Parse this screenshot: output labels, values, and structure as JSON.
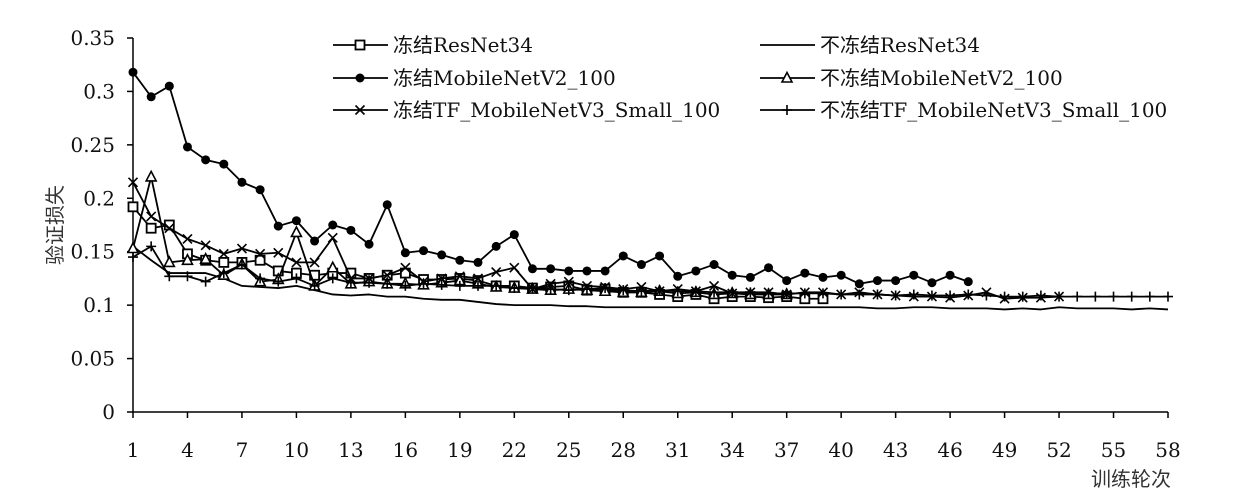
{
  "chart_data": {
    "type": "line",
    "xlabel": "训练轮次",
    "ylabel": "验证损失",
    "xlim": [
      1,
      58
    ],
    "ylim": [
      0,
      0.35
    ],
    "x_ticks": [
      "1",
      "4",
      "7",
      "10",
      "13",
      "16",
      "19",
      "22",
      "25",
      "28",
      "31",
      "34",
      "37",
      "40",
      "43",
      "46",
      "49",
      "52",
      "55",
      "58"
    ],
    "y_ticks": [
      "0",
      "0.05",
      "0.1",
      "0.15",
      "0.2",
      "0.25",
      "0.3",
      "0.35"
    ],
    "legend_position": "top",
    "grid": false,
    "series": [
      {
        "name": "冻结ResNet34",
        "marker": "square",
        "x_start": 1,
        "values": [
          0.192,
          0.172,
          0.175,
          0.148,
          0.142,
          0.14,
          0.14,
          0.142,
          0.132,
          0.13,
          0.128,
          0.13,
          0.13,
          0.125,
          0.128,
          0.13,
          0.124,
          0.124,
          0.125,
          0.123,
          0.118,
          0.118,
          0.116,
          0.117,
          0.118,
          0.114,
          0.115,
          0.112,
          0.112,
          0.11,
          0.108,
          0.11,
          0.106,
          0.108,
          0.108,
          0.107,
          0.108,
          0.106,
          0.106
        ]
      },
      {
        "name": "不冻结ResNet34",
        "marker": "none",
        "x_start": 1,
        "values": [
          0.155,
          0.142,
          0.13,
          0.13,
          0.13,
          0.125,
          0.118,
          0.117,
          0.116,
          0.118,
          0.114,
          0.11,
          0.109,
          0.11,
          0.108,
          0.108,
          0.106,
          0.105,
          0.105,
          0.103,
          0.101,
          0.1,
          0.1,
          0.1,
          0.099,
          0.099,
          0.098,
          0.098,
          0.098,
          0.098,
          0.098,
          0.098,
          0.098,
          0.098,
          0.098,
          0.098,
          0.098,
          0.098,
          0.098,
          0.098,
          0.098,
          0.097,
          0.097,
          0.098,
          0.098,
          0.097,
          0.097,
          0.097,
          0.096,
          0.097,
          0.096,
          0.098,
          0.097,
          0.097,
          0.097,
          0.096,
          0.097,
          0.096
        ]
      },
      {
        "name": "冻结MobileNetV2_100",
        "marker": "circle",
        "x_start": 1,
        "values": [
          0.318,
          0.295,
          0.305,
          0.248,
          0.236,
          0.232,
          0.215,
          0.208,
          0.174,
          0.179,
          0.16,
          0.175,
          0.17,
          0.157,
          0.194,
          0.149,
          0.151,
          0.147,
          0.142,
          0.14,
          0.155,
          0.166,
          0.134,
          0.134,
          0.132,
          0.132,
          0.132,
          0.146,
          0.138,
          0.146,
          0.127,
          0.132,
          0.138,
          0.128,
          0.126,
          0.135,
          0.123,
          0.13,
          0.126,
          0.128,
          0.12,
          0.123,
          0.123,
          0.128,
          0.121,
          0.128,
          0.122
        ]
      },
      {
        "name": "不冻结MobileNetV2_100",
        "marker": "triangle",
        "x_start": 1,
        "values": [
          0.153,
          0.22,
          0.14,
          0.142,
          0.143,
          0.128,
          0.138,
          0.122,
          0.124,
          0.168,
          0.118,
          0.135,
          0.12,
          0.122,
          0.12,
          0.12,
          0.119,
          0.121,
          0.123,
          0.12,
          0.117,
          0.116,
          0.115,
          0.114,
          0.115,
          0.114,
          0.113,
          0.112,
          0.112,
          0.113,
          0.111,
          0.112,
          0.11,
          0.111,
          0.11,
          0.11,
          0.11
        ]
      },
      {
        "name": "冻结TF_MobileNetV3_Small_100",
        "marker": "x",
        "x_start": 1,
        "values": [
          0.215,
          0.183,
          0.172,
          0.162,
          0.156,
          0.148,
          0.153,
          0.148,
          0.149,
          0.14,
          0.14,
          0.163,
          0.125,
          0.125,
          0.128,
          0.135,
          0.122,
          0.125,
          0.127,
          0.125,
          0.131,
          0.135,
          0.115,
          0.12,
          0.122,
          0.118,
          0.117,
          0.115,
          0.117,
          0.113,
          0.115,
          0.113,
          0.118,
          0.111,
          0.112,
          0.112,
          0.11,
          0.112,
          0.112,
          0.11,
          0.112,
          0.11,
          0.109,
          0.108,
          0.108,
          0.107,
          0.109,
          0.112,
          0.106,
          0.107,
          0.107,
          0.108
        ]
      },
      {
        "name": "不冻结TF_MobileNetV3_Small_100",
        "marker": "plus",
        "x_start": 1,
        "values": [
          0.145,
          0.155,
          0.127,
          0.127,
          0.122,
          0.13,
          0.138,
          0.125,
          0.122,
          0.125,
          0.118,
          0.125,
          0.121,
          0.121,
          0.12,
          0.118,
          0.12,
          0.119,
          0.118,
          0.118,
          0.118,
          0.116,
          0.116,
          0.115,
          0.114,
          0.115,
          0.116,
          0.114,
          0.113,
          0.114,
          0.113,
          0.113,
          0.112,
          0.112,
          0.112,
          0.111,
          0.111,
          0.111,
          0.111,
          0.11,
          0.11,
          0.11,
          0.109,
          0.11,
          0.109,
          0.109,
          0.11,
          0.109,
          0.108,
          0.108,
          0.109,
          0.108,
          0.108,
          0.108,
          0.108,
          0.108,
          0.108,
          0.108
        ]
      }
    ]
  }
}
